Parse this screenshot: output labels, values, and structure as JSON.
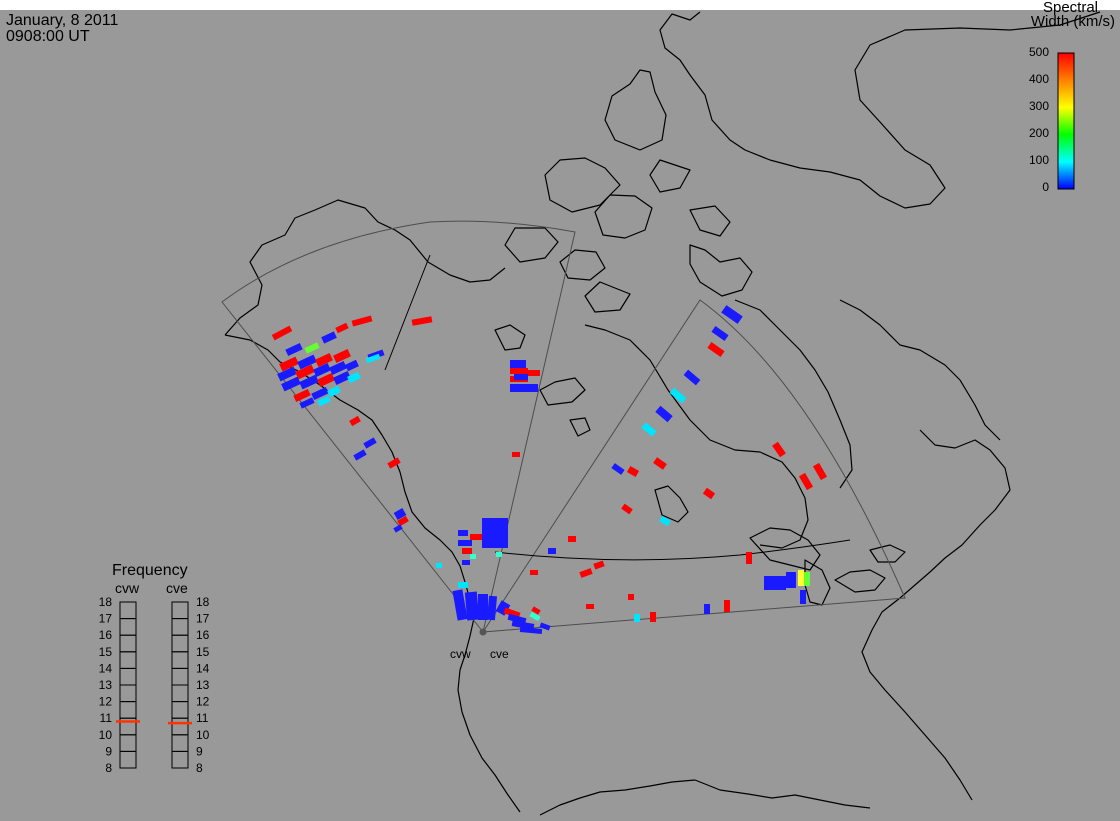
{
  "header": {
    "date": "January, 8 2011",
    "time": "0908:00 UT"
  },
  "colorbar": {
    "title_line1": "Spectral",
    "title_line2": "Width (km/s)",
    "ticks": [
      "500",
      "400",
      "300",
      "200",
      "100",
      "0"
    ],
    "range": [
      0,
      500
    ],
    "colors": [
      "#ff0000",
      "#ff8000",
      "#ffff00",
      "#00ff00",
      "#00ffff",
      "#0000ff"
    ]
  },
  "frequency_panel": {
    "title": "Frequency",
    "radars": [
      "cvw",
      "cve"
    ],
    "scale": [
      "18",
      "17",
      "16",
      "15",
      "14",
      "13",
      "12",
      "11",
      "10",
      "9",
      "8"
    ],
    "cvw_value_mhz": 10.8,
    "cve_value_mhz": 10.7
  },
  "sites": {
    "cvw_label": "cvw",
    "cve_label": "cve"
  },
  "colors": {
    "background": "#999999",
    "coastline": "#000000",
    "fov_outline": "#4d4d4d",
    "freq_marker": "#ff3300",
    "site": "#555555"
  }
}
